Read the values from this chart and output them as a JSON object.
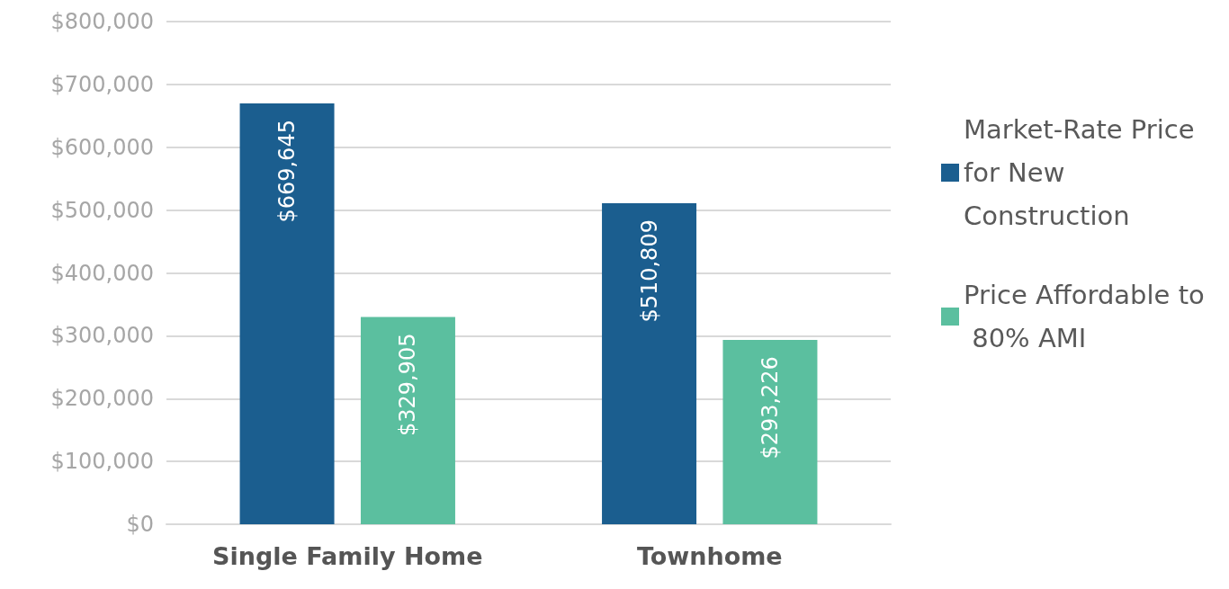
{
  "chart_data": {
    "type": "bar",
    "categories": [
      "Single Family Home",
      "Townhome"
    ],
    "series": [
      {
        "name": "Market-Rate Price for New Construction",
        "color": "#1b5e8f",
        "values": [
          669645,
          510809
        ],
        "value_labels": [
          "$669,645",
          "$510,809"
        ]
      },
      {
        "name": "Price Affordable to 80% AMI",
        "color": "#5bbf9f",
        "values": [
          329905,
          293226
        ],
        "value_labels": [
          "$329,905",
          "$293,226"
        ]
      }
    ],
    "ylim": [
      0,
      800000
    ],
    "yticks": [
      {
        "value": 0,
        "label": "$0"
      },
      {
        "value": 100000,
        "label": "$100,000"
      },
      {
        "value": 200000,
        "label": "$200,000"
      },
      {
        "value": 300000,
        "label": "$300,000"
      },
      {
        "value": 400000,
        "label": "$400,000"
      },
      {
        "value": 500000,
        "label": "$500,000"
      },
      {
        "value": 600000,
        "label": "$600,000"
      },
      {
        "value": 700000,
        "label": "$700,000"
      },
      {
        "value": 800000,
        "label": "$800,000"
      }
    ],
    "grid": "y",
    "legend": "right"
  }
}
